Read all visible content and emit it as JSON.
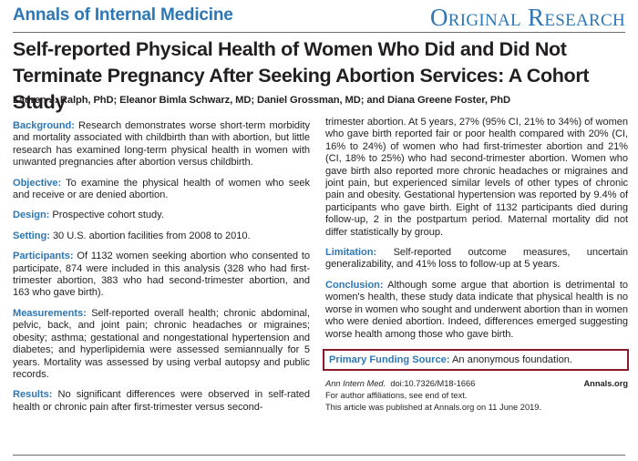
{
  "header": {
    "journal": "Annals of Internal Medicine",
    "section": "Original Research"
  },
  "article": {
    "title": "Self-reported Physical Health of Women Who Did and Did Not Terminate Pregnancy After Seeking Abortion Services: A Cohort Study",
    "authors": "Lauren J. Ralph, PhD; Eleanor Bimla Schwarz, MD; Daniel Grossman, MD; and Diana Greene Foster, PhD"
  },
  "abstract": {
    "background": {
      "label": "Background:",
      "text": "Research demonstrates worse short-term morbidity and mortality associated with childbirth than with abortion, but little research has examined long-term physical health in women with unwanted pregnancies after abortion versus childbirth."
    },
    "objective": {
      "label": "Objective:",
      "text": "To examine the physical health of women who seek and receive or are denied abortion."
    },
    "design": {
      "label": "Design:",
      "text": "Prospective cohort study."
    },
    "setting": {
      "label": "Setting:",
      "text": "30 U.S. abortion facilities from 2008 to 2010."
    },
    "participants": {
      "label": "Participants:",
      "text": "Of 1132 women seeking abortion who consented to participate, 874 were included in this analysis (328 who had first-trimester abortion, 383 who had second-trimester abortion, and 163 who gave birth)."
    },
    "measurements": {
      "label": "Measurements:",
      "text": "Self-reported overall health; chronic abdominal, pelvic, back, and joint pain; chronic headaches or migraines; obesity; asthma; gestational and nongestational hypertension and diabetes; and hyperlipidemia were assessed semiannually for 5 years. Mortality was assessed by using verbal autopsy and public records."
    },
    "results": {
      "label": "Results:",
      "text": "No significant differences were observed in self-rated health or chronic pain after first-trimester versus second-",
      "continued": "trimester abortion. At 5 years, 27% (95% CI, 21% to 34%) of women who gave birth reported fair or poor health compared with 20% (CI, 16% to 24%) of women who had first-trimester abortion and 21% (CI, 18% to 25%) who had second-trimester abortion. Women who gave birth also reported more chronic headaches or migraines and joint pain, but experienced similar levels of other types of chronic pain and obesity. Gestational hypertension was reported by 9.4% of participants who gave birth. Eight of 1132 participants died during follow-up, 2 in the postpartum period. Maternal mortality did not differ statistically by group."
    },
    "limitation": {
      "label": "Limitation:",
      "text": "Self-reported outcome measures, uncertain generalizability, and 41% loss to follow-up at 5 years."
    },
    "conclusion": {
      "label": "Conclusion:",
      "text": "Although some argue that abortion is detrimental to women's health, these study data indicate that physical health is no worse in women who sought and underwent abortion than in women who were denied abortion. Indeed, differences emerged suggesting worse health among those who gave birth."
    },
    "funding": {
      "label": "Primary Funding Source:",
      "text": "An anonymous foundation."
    }
  },
  "citation": {
    "journal": "Ann Intern Med.",
    "doi": "doi:10.7326/M18-1666",
    "site": "Annals.org",
    "affiliations": "For author affiliations, see end of text.",
    "published": "This article was published at Annals.org on 11 June 2019."
  },
  "colors": {
    "accent": "#2d77b5",
    "highlight_box": "#8b1a2b",
    "text": "#231f20"
  }
}
